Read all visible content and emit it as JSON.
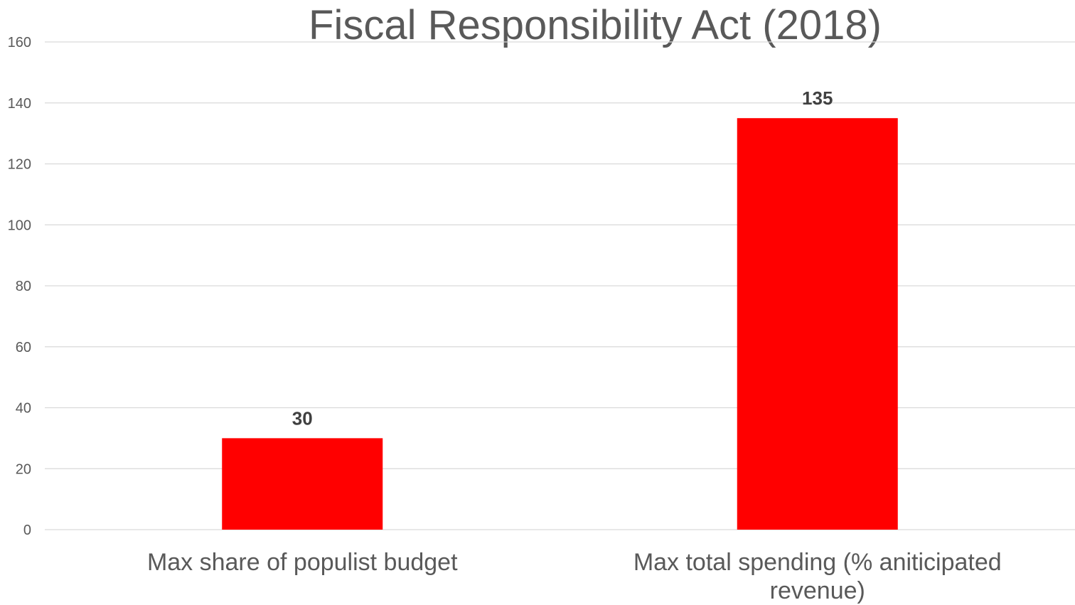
{
  "chart_data": {
    "type": "bar",
    "title": "Fiscal Responsibility Act (2018)",
    "categories": [
      "Max share of populist budget",
      "Max total spending (% aniticipated revenue)"
    ],
    "category_label_lines": [
      [
        "Max share of populist budget"
      ],
      [
        "Max total spending (% aniticipated",
        "revenue)"
      ]
    ],
    "values": [
      30,
      135
    ],
    "data_labels": [
      "30",
      "135"
    ],
    "ylim": [
      0,
      160
    ],
    "yticks": [
      0,
      20,
      40,
      60,
      80,
      100,
      120,
      140,
      160
    ],
    "grid": true,
    "legend": "none",
    "xlabel": "",
    "ylabel": "",
    "bar_color": "#ff0000"
  }
}
